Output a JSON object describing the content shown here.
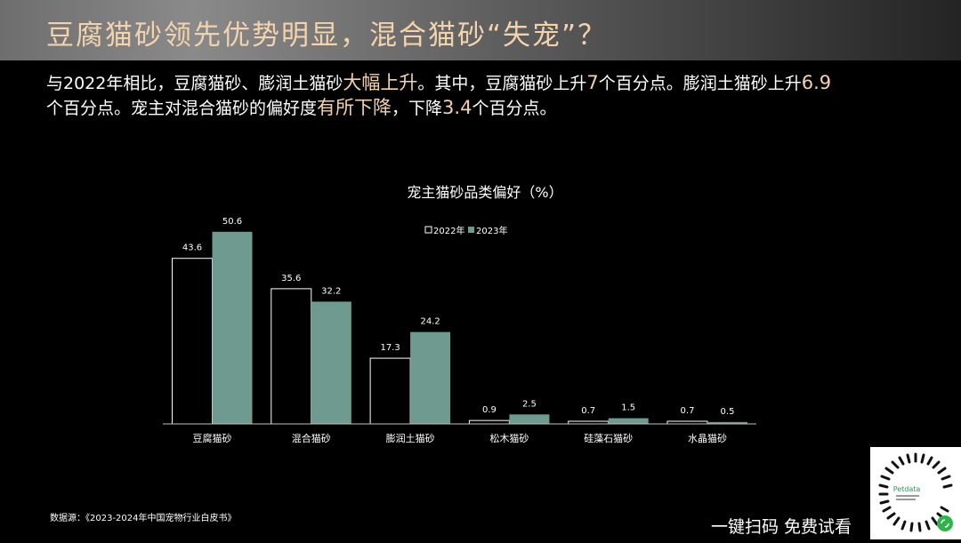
{
  "header": {
    "title": "豆腐猫砂领先优势明显，混合猫砂“失宠”？"
  },
  "intro": {
    "s1": "与2022年相比，豆腐猫砂、膨润土猫砂",
    "h1": "大幅上升",
    "s2": "。其中，豆腐猫砂上升",
    "h2": "7",
    "s3": "个百分点。膨润土猫砂上升",
    "h3": "6.9",
    "s4": "个百分点。宠主对混合猫砂的偏好度",
    "h4": "有所下降",
    "s5": "，下降",
    "h5": "3.4",
    "s6": "个百分点。"
  },
  "chart_data": {
    "type": "bar",
    "title": "宠主猫砂品类偏好（%）",
    "categories": [
      "豆腐猫砂",
      "混合猫砂",
      "膨润土猫砂",
      "松木猫砂",
      "硅藻石猫砂",
      "水晶猫砂"
    ],
    "series": [
      {
        "name": "2022年",
        "values": [
          43.6,
          35.6,
          17.3,
          0.9,
          0.7,
          0.7
        ],
        "color": "#000000"
      },
      {
        "name": "2023年",
        "values": [
          50.6,
          32.2,
          24.2,
          2.5,
          1.5,
          0.5
        ],
        "color": "#6f9a8f"
      }
    ],
    "ylim": [
      0,
      55
    ],
    "legend": "top-center",
    "grid": false
  },
  "footer": {
    "source": "数据源：《2023-2024年中国宠物行业白皮书》",
    "qr_caption": "一键扫码 免费试看",
    "qr_brand": "Petdata"
  }
}
